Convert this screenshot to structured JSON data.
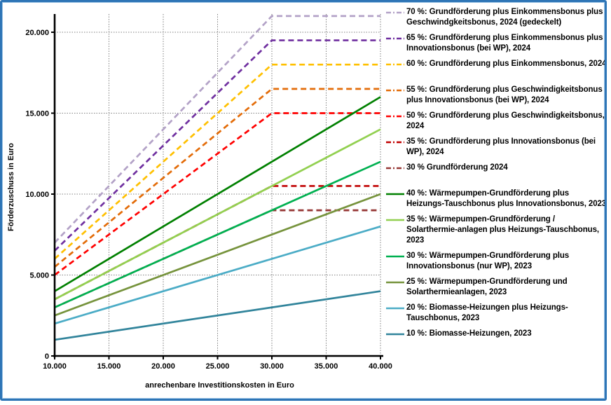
{
  "frame": {
    "border_color": "#2e75b6",
    "background": "#ffffff"
  },
  "chart_data": {
    "type": "line",
    "title": "",
    "xlabel": "anrechenbare Investitionskosten in Euro",
    "ylabel": "Förderzuschuss in Euro",
    "xlim": [
      10000,
      40000
    ],
    "ylim": [
      0,
      21500
    ],
    "grid": "dotted-gray-both-axes",
    "legend_position": "right",
    "x_ticks": {
      "values": [
        10000,
        15000,
        20000,
        25000,
        30000,
        35000,
        40000
      ],
      "labels": [
        "10.000",
        "15.000",
        "20.000",
        "25.000",
        "30.000",
        "35.000",
        "40.000"
      ]
    },
    "y_ticks": {
      "values": [
        0,
        5000,
        10000,
        15000,
        20000
      ],
      "labels": [
        "0",
        "5.000",
        "10.000",
        "15.000",
        "20.000"
      ]
    },
    "series": [
      {
        "name": "70 %: Grundförderung plus Einkommensbonus plus Geschwindgkeitsbonus, 2024 (gedeckelt)",
        "color": "#b3a2c7",
        "style": "dashed",
        "points": [
          [
            10000,
            7000
          ],
          [
            30000,
            21000
          ],
          [
            40000,
            21000
          ]
        ]
      },
      {
        "name": "65 %: Grundförderung plus Einkommensbonus plus Innovationsbonus (bei WP), 2024",
        "color": "#7030a0",
        "style": "dashed",
        "points": [
          [
            10000,
            6500
          ],
          [
            30000,
            19500
          ],
          [
            40000,
            19500
          ]
        ]
      },
      {
        "name": "60 %: Grundförderung plus Einkommensbonus, 2024",
        "color": "#ffc000",
        "style": "dashed",
        "points": [
          [
            10000,
            6000
          ],
          [
            30000,
            18000
          ],
          [
            40000,
            18000
          ]
        ]
      },
      {
        "name": "55 %: Grundförderung plus Geschwindigkeitsbonus plus Innovationsbonus (bei WP), 2024",
        "color": "#e36c09",
        "style": "dashed",
        "points": [
          [
            10000,
            5500
          ],
          [
            30000,
            16500
          ],
          [
            40000,
            16500
          ]
        ]
      },
      {
        "name": "50 %: Grundförderung plus Geschwindigkeitsbonus, 2024",
        "color": "#ff0000",
        "style": "dashed",
        "points": [
          [
            10000,
            5000
          ],
          [
            30000,
            15000
          ],
          [
            40000,
            15000
          ]
        ]
      },
      {
        "name": "35 %: Grundförderung plus Innovationsbonus (bei WP), 2024",
        "color": "#c00000",
        "style": "dashed",
        "points": [
          [
            10000,
            3500
          ],
          [
            30000,
            10500
          ],
          [
            40000,
            10500
          ]
        ]
      },
      {
        "name": "30 % Grundförderung 2024",
        "color": "#963634",
        "style": "dashed",
        "points": [
          [
            10000,
            3000
          ],
          [
            30000,
            9000
          ],
          [
            40000,
            9000
          ]
        ]
      },
      {
        "name": "40 %: Wärmepumpen-Grundförderung plus Heizungs-Tauschbonus plus Innovationsbonus, 2023",
        "color": "#008000",
        "style": "solid",
        "points": [
          [
            10000,
            4000
          ],
          [
            40000,
            16000
          ]
        ]
      },
      {
        "name": "35 %: Wärmepumpen-Grundförderung / Solarthermie-anlagen plus Heizungs-Tauschbonus, 2023",
        "color": "#92d050",
        "style": "solid",
        "points": [
          [
            10000,
            3500
          ],
          [
            40000,
            14000
          ]
        ]
      },
      {
        "name": "30 %: Wärmepumpen-Grundförderung plus Innovationsbonus (nur WP), 2023",
        "color": "#00b050",
        "style": "solid",
        "points": [
          [
            10000,
            3000
          ],
          [
            40000,
            12000
          ]
        ]
      },
      {
        "name": "25 %: Wärmepumpen-Grundförderung und Solarthermieanlagen, 2023",
        "color": "#76933c",
        "style": "solid",
        "points": [
          [
            10000,
            2500
          ],
          [
            40000,
            10000
          ]
        ]
      },
      {
        "name": "20 %: Biomasse-Heizungen plus Heizungs-Tauschbonus, 2023",
        "color": "#4bacc6",
        "style": "solid",
        "points": [
          [
            10000,
            2000
          ],
          [
            40000,
            8000
          ]
        ]
      },
      {
        "name": "10 %: Biomasse-Heizungen, 2023",
        "color": "#31849b",
        "style": "solid",
        "points": [
          [
            10000,
            1000
          ],
          [
            40000,
            4000
          ]
        ]
      }
    ]
  }
}
